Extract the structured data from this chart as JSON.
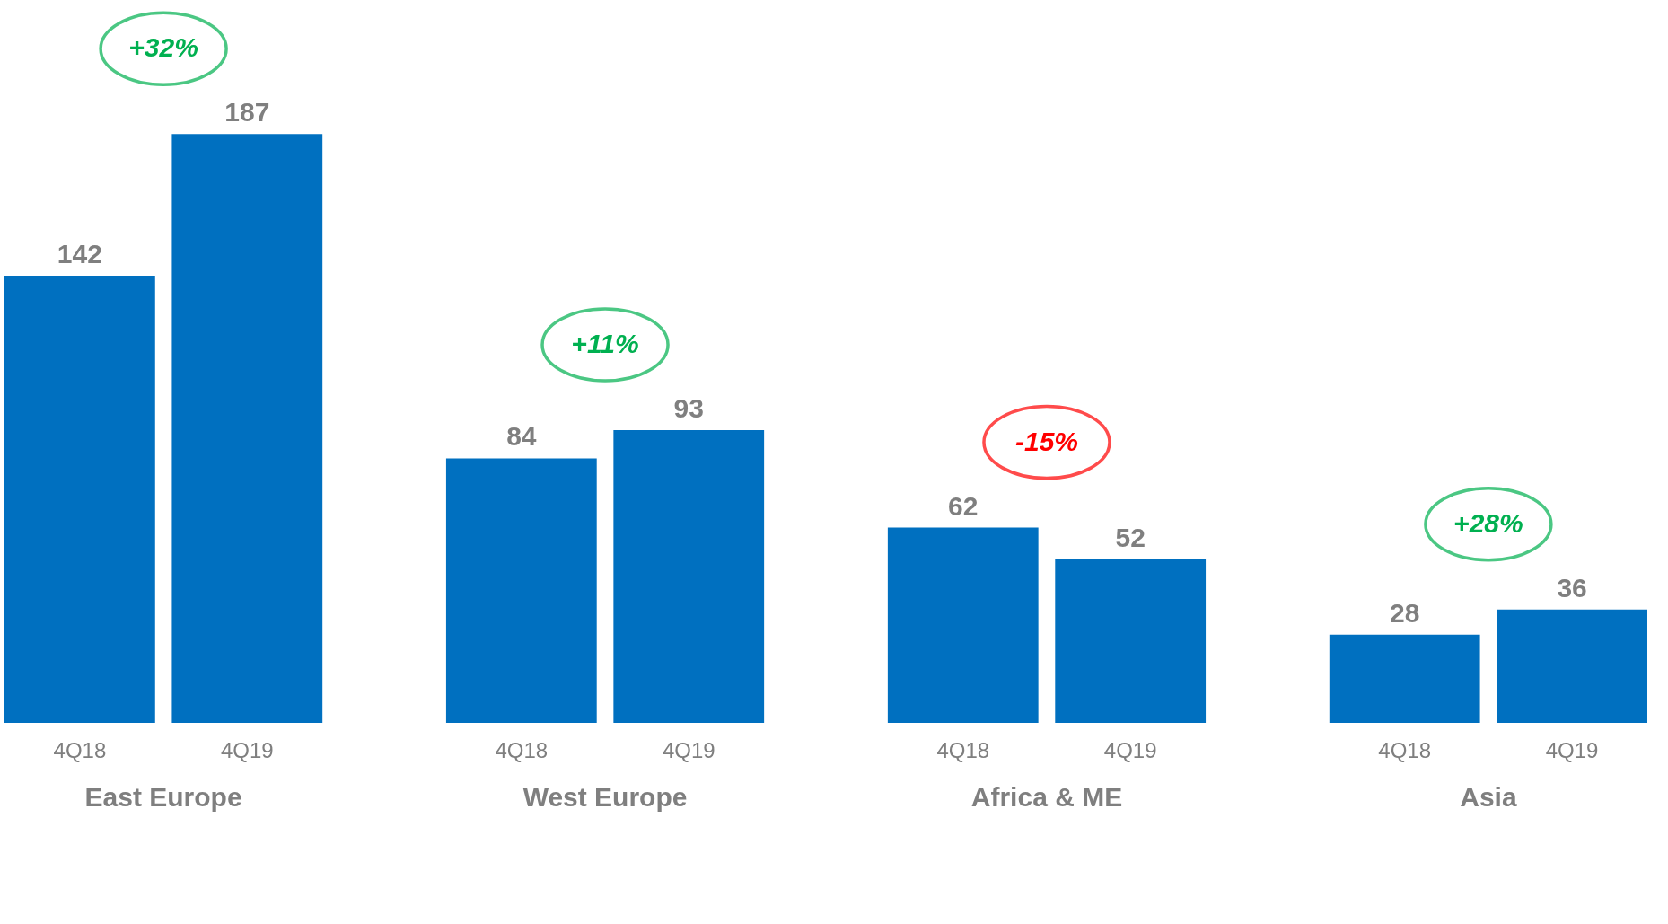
{
  "chart_data": {
    "type": "bar",
    "categories": [
      "East Europe",
      "West Europe",
      "Africa & ME",
      "Asia"
    ],
    "series": [
      {
        "name": "4Q18",
        "color": "#0070c0",
        "values": [
          142,
          84,
          62,
          28
        ]
      },
      {
        "name": "4Q19",
        "color": "#0070c0",
        "values": [
          187,
          93,
          52,
          36
        ]
      }
    ],
    "data_labels": true,
    "annotations": [
      "+32%",
      "+11%",
      "-15%",
      "+28%"
    ]
  }
}
